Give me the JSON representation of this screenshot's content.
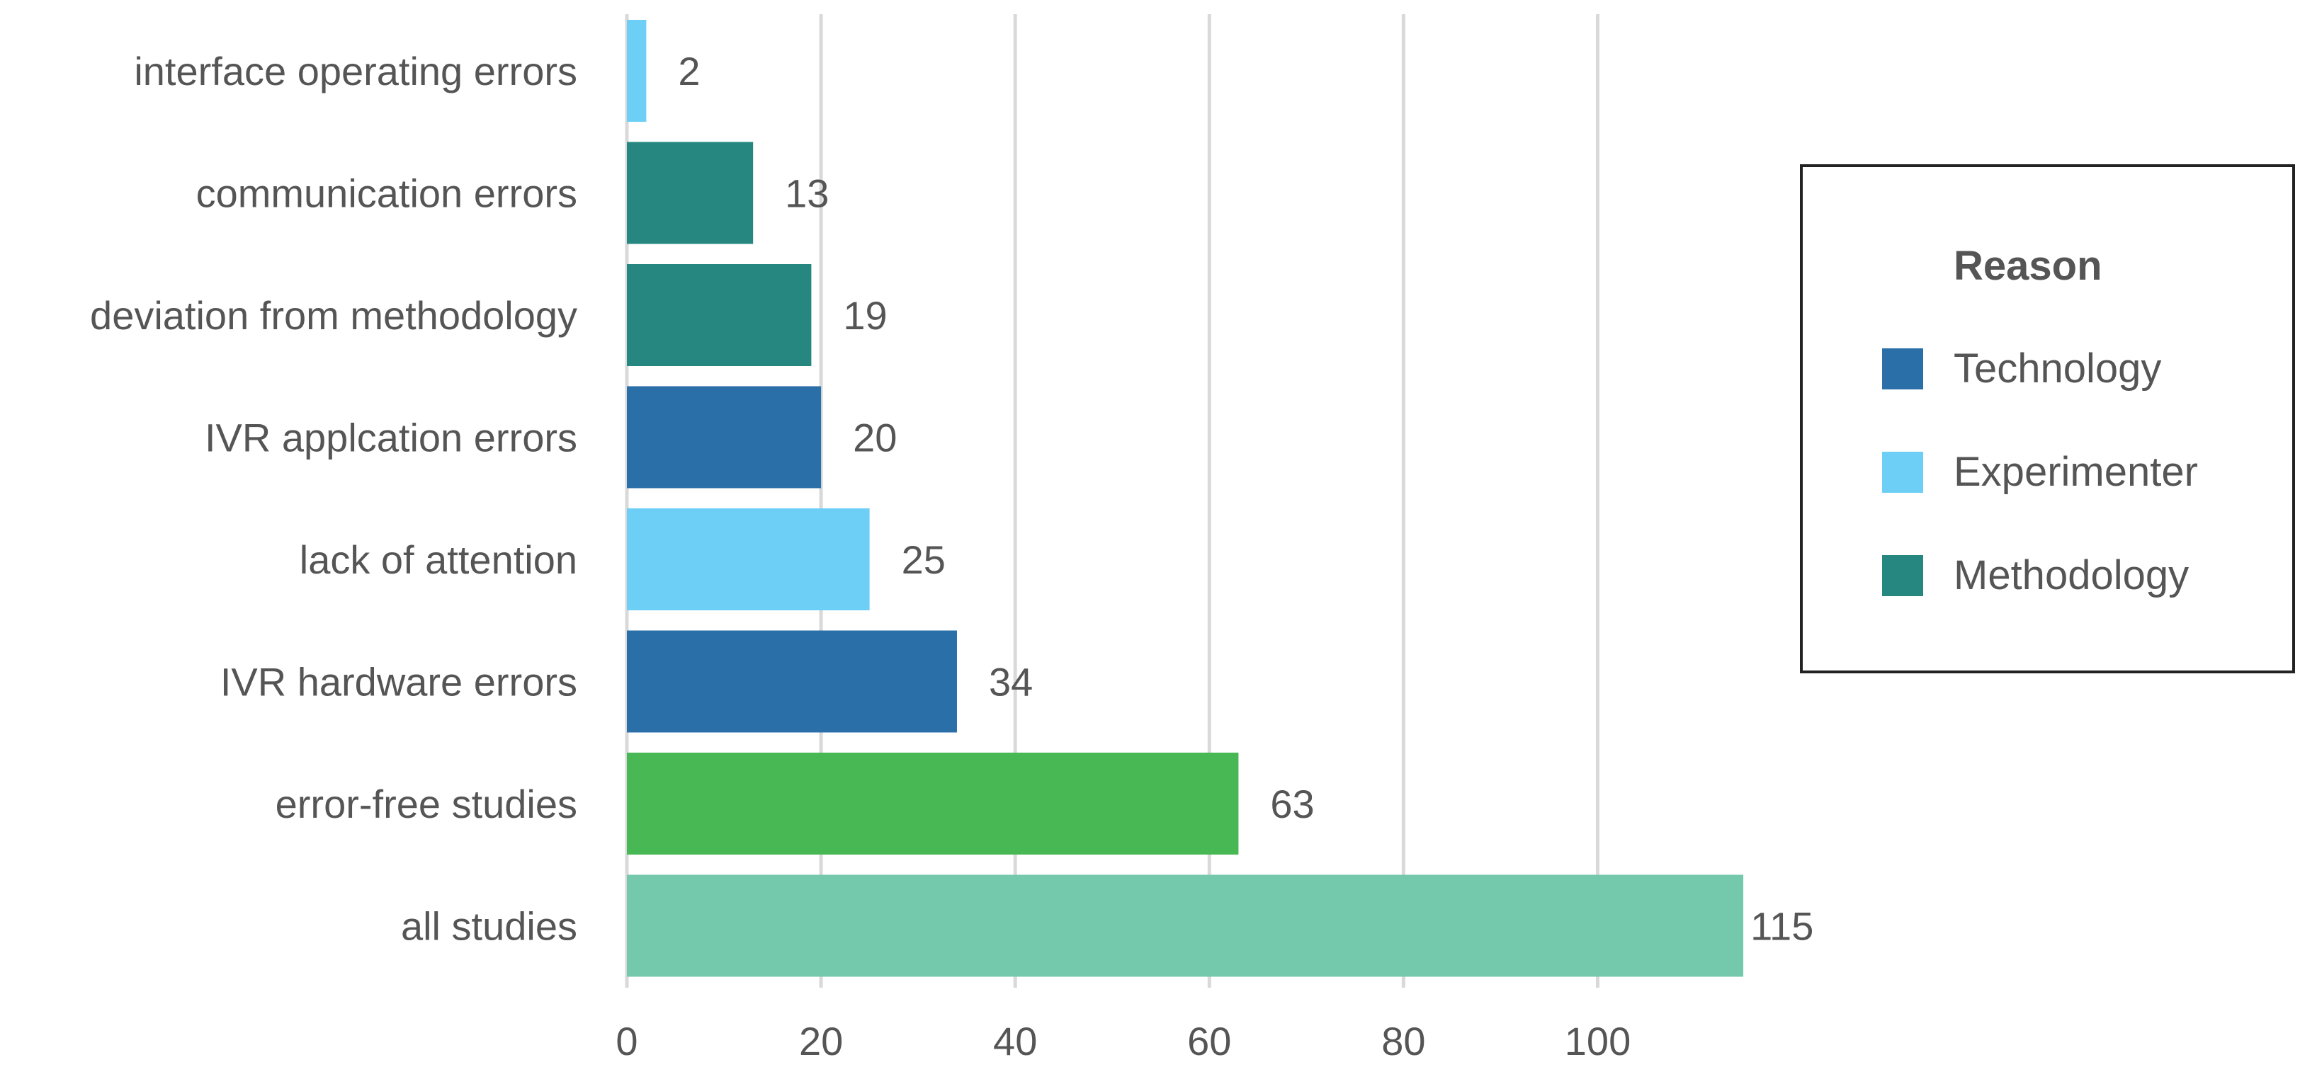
{
  "chart_data": {
    "type": "bar",
    "orientation": "horizontal",
    "categories": [
      "interface operating errors",
      "communication errors",
      "deviation from methodology",
      "IVR applcation errors",
      "lack of attention",
      "IVR hardware errors",
      "error-free studies",
      "all studies"
    ],
    "values": [
      2,
      13,
      19,
      20,
      25,
      34,
      63,
      115
    ],
    "bar_colors": [
      "#6dcff6",
      "#258780",
      "#258780",
      "#2a6fa8",
      "#6dcff6",
      "#2a6fa8",
      "#48b854",
      "#74c8ab"
    ],
    "xticks": [
      0,
      20,
      40,
      60,
      80,
      100
    ],
    "xlim": [
      0,
      115
    ],
    "grid": true,
    "legend": {
      "title": "Reason",
      "placement": "right",
      "items": [
        {
          "label": "Technology",
          "color": "#2a6fa8"
        },
        {
          "label": "Experimenter",
          "color": "#6dcff6"
        },
        {
          "label": "Methodology",
          "color": "#258780"
        }
      ]
    }
  }
}
